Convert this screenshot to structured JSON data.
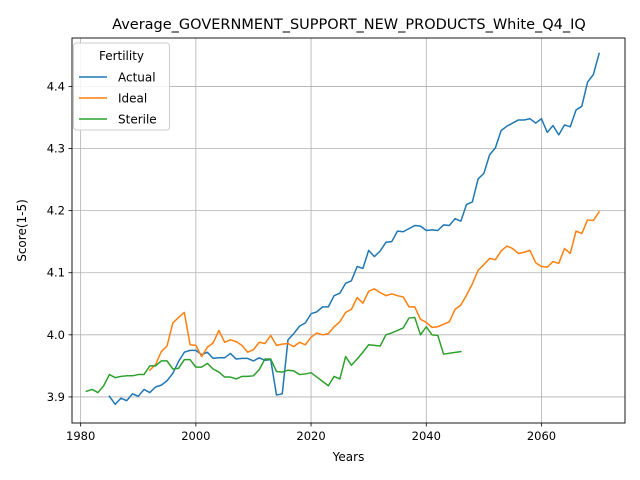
{
  "chart_data": {
    "type": "line",
    "title": "Average_GOVERNMENT_SUPPORT_NEW_PRODUCTS_White_Q4_IQ",
    "xlabel": "Years",
    "ylabel": "Score(1-5)",
    "xlim": [
      1978.5,
      2074.5
    ],
    "ylim": [
      3.858,
      4.478
    ],
    "xticks": [
      1980,
      2000,
      2020,
      2040,
      2060
    ],
    "yticks": [
      3.9,
      4.0,
      4.1,
      4.2,
      4.3,
      4.4
    ],
    "xtick_labels": [
      "1980",
      "2000",
      "2020",
      "2040",
      "2060"
    ],
    "ytick_labels": [
      "3.9",
      "4.0",
      "4.1",
      "4.2",
      "4.3",
      "4.4"
    ],
    "grid": true,
    "legend": {
      "title": "Fertility",
      "position": "top-left"
    },
    "series": [
      {
        "name": "Actual",
        "color": "#1f77b4",
        "points": [
          [
            1985,
            3.901
          ],
          [
            1986,
            3.888
          ],
          [
            1987,
            3.898
          ],
          [
            1988,
            3.894
          ],
          [
            1989,
            3.905
          ],
          [
            1990,
            3.901
          ],
          [
            1991,
            3.912
          ],
          [
            1992,
            3.907
          ],
          [
            1993,
            3.916
          ],
          [
            1994,
            3.919
          ],
          [
            1995,
            3.926
          ],
          [
            1996,
            3.938
          ],
          [
            1997,
            3.957
          ],
          [
            1998,
            3.972
          ],
          [
            1999,
            3.975
          ],
          [
            2000,
            3.975
          ],
          [
            2001,
            3.968
          ],
          [
            2002,
            3.972
          ],
          [
            2003,
            3.962
          ],
          [
            2004,
            3.963
          ],
          [
            2005,
            3.963
          ],
          [
            2006,
            3.97
          ],
          [
            2007,
            3.961
          ],
          [
            2008,
            3.962
          ],
          [
            2009,
            3.962
          ],
          [
            2010,
            3.958
          ],
          [
            2011,
            3.963
          ],
          [
            2012,
            3.959
          ],
          [
            2013,
            3.96
          ],
          [
            2014,
            3.903
          ],
          [
            2015,
            3.905
          ],
          [
            2016,
            3.992
          ],
          [
            2017,
            4.002
          ],
          [
            2018,
            4.014
          ],
          [
            2019,
            4.019
          ],
          [
            2020,
            4.034
          ],
          [
            2021,
            4.037
          ],
          [
            2022,
            4.045
          ],
          [
            2023,
            4.045
          ],
          [
            2024,
            4.063
          ],
          [
            2025,
            4.067
          ],
          [
            2026,
            4.083
          ],
          [
            2027,
            4.087
          ],
          [
            2028,
            4.11
          ],
          [
            2029,
            4.107
          ],
          [
            2030,
            4.136
          ],
          [
            2031,
            4.126
          ],
          [
            2032,
            4.135
          ],
          [
            2033,
            4.149
          ],
          [
            2034,
            4.15
          ],
          [
            2035,
            4.167
          ],
          [
            2036,
            4.166
          ],
          [
            2037,
            4.171
          ],
          [
            2038,
            4.176
          ],
          [
            2039,
            4.175
          ],
          [
            2040,
            4.168
          ],
          [
            2041,
            4.169
          ],
          [
            2042,
            4.168
          ],
          [
            2043,
            4.177
          ],
          [
            2044,
            4.176
          ],
          [
            2045,
            4.187
          ],
          [
            2046,
            4.183
          ],
          [
            2047,
            4.21
          ],
          [
            2048,
            4.214
          ],
          [
            2049,
            4.251
          ],
          [
            2050,
            4.26
          ],
          [
            2051,
            4.29
          ],
          [
            2052,
            4.301
          ],
          [
            2053,
            4.329
          ],
          [
            2054,
            4.336
          ],
          [
            2055,
            4.341
          ],
          [
            2056,
            4.346
          ],
          [
            2057,
            4.346
          ],
          [
            2058,
            4.348
          ],
          [
            2059,
            4.341
          ],
          [
            2060,
            4.348
          ],
          [
            2061,
            4.326
          ],
          [
            2062,
            4.337
          ],
          [
            2063,
            4.322
          ],
          [
            2064,
            4.338
          ],
          [
            2065,
            4.335
          ],
          [
            2066,
            4.362
          ],
          [
            2067,
            4.368
          ],
          [
            2068,
            4.407
          ],
          [
            2069,
            4.419
          ],
          [
            2070,
            4.453
          ]
        ]
      },
      {
        "name": "Ideal",
        "color": "#ff7f0e",
        "points": [
          [
            1992,
            3.943
          ],
          [
            1993,
            3.952
          ],
          [
            1994,
            3.973
          ],
          [
            1995,
            3.982
          ],
          [
            1996,
            4.019
          ],
          [
            1997,
            4.028
          ],
          [
            1998,
            4.036
          ],
          [
            1999,
            3.984
          ],
          [
            2000,
            3.983
          ],
          [
            2001,
            3.965
          ],
          [
            2002,
            3.98
          ],
          [
            2003,
            3.987
          ],
          [
            2004,
            4.007
          ],
          [
            2005,
            3.988
          ],
          [
            2006,
            3.992
          ],
          [
            2007,
            3.989
          ],
          [
            2008,
            3.983
          ],
          [
            2009,
            3.972
          ],
          [
            2010,
            3.976
          ],
          [
            2011,
            3.988
          ],
          [
            2012,
            3.986
          ],
          [
            2013,
            3.999
          ],
          [
            2014,
            3.983
          ],
          [
            2015,
            3.985
          ],
          [
            2016,
            3.986
          ],
          [
            2017,
            3.981
          ],
          [
            2018,
            3.988
          ],
          [
            2019,
            3.984
          ],
          [
            2020,
            3.996
          ],
          [
            2021,
            4.003
          ],
          [
            2022,
            4.0
          ],
          [
            2023,
            4.002
          ],
          [
            2024,
            4.013
          ],
          [
            2025,
            4.021
          ],
          [
            2026,
            4.036
          ],
          [
            2027,
            4.041
          ],
          [
            2028,
            4.06
          ],
          [
            2029,
            4.051
          ],
          [
            2030,
            4.07
          ],
          [
            2031,
            4.074
          ],
          [
            2032,
            4.068
          ],
          [
            2033,
            4.063
          ],
          [
            2034,
            4.066
          ],
          [
            2035,
            4.063
          ],
          [
            2036,
            4.061
          ],
          [
            2037,
            4.045
          ],
          [
            2038,
            4.045
          ],
          [
            2039,
            4.025
          ],
          [
            2040,
            4.02
          ],
          [
            2041,
            4.012
          ],
          [
            2042,
            4.013
          ],
          [
            2043,
            4.017
          ],
          [
            2044,
            4.021
          ],
          [
            2045,
            4.041
          ],
          [
            2046,
            4.048
          ],
          [
            2047,
            4.064
          ],
          [
            2048,
            4.082
          ],
          [
            2049,
            4.104
          ],
          [
            2050,
            4.113
          ],
          [
            2051,
            4.123
          ],
          [
            2052,
            4.121
          ],
          [
            2053,
            4.135
          ],
          [
            2054,
            4.143
          ],
          [
            2055,
            4.139
          ],
          [
            2056,
            4.131
          ],
          [
            2057,
            4.133
          ],
          [
            2058,
            4.136
          ],
          [
            2059,
            4.116
          ],
          [
            2060,
            4.11
          ],
          [
            2061,
            4.109
          ],
          [
            2062,
            4.118
          ],
          [
            2063,
            4.115
          ],
          [
            2064,
            4.139
          ],
          [
            2065,
            4.131
          ],
          [
            2066,
            4.167
          ],
          [
            2067,
            4.163
          ],
          [
            2068,
            4.185
          ],
          [
            2069,
            4.184
          ],
          [
            2070,
            4.198
          ]
        ]
      },
      {
        "name": "Sterile",
        "color": "#2ca02c",
        "points": [
          [
            1981,
            3.909
          ],
          [
            1982,
            3.912
          ],
          [
            1983,
            3.907
          ],
          [
            1984,
            3.918
          ],
          [
            1985,
            3.936
          ],
          [
            1986,
            3.931
          ],
          [
            1987,
            3.933
          ],
          [
            1988,
            3.934
          ],
          [
            1989,
            3.934
          ],
          [
            1990,
            3.936
          ],
          [
            1991,
            3.936
          ],
          [
            1992,
            3.95
          ],
          [
            1993,
            3.95
          ],
          [
            1994,
            3.958
          ],
          [
            1995,
            3.958
          ],
          [
            1996,
            3.945
          ],
          [
            1997,
            3.946
          ],
          [
            1998,
            3.96
          ],
          [
            1999,
            3.96
          ],
          [
            2000,
            3.948
          ],
          [
            2001,
            3.948
          ],
          [
            2002,
            3.954
          ],
          [
            2003,
            3.945
          ],
          [
            2004,
            3.94
          ],
          [
            2005,
            3.932
          ],
          [
            2006,
            3.932
          ],
          [
            2007,
            3.929
          ],
          [
            2008,
            3.933
          ],
          [
            2009,
            3.933
          ],
          [
            2010,
            3.934
          ],
          [
            2011,
            3.944
          ],
          [
            2012,
            3.961
          ],
          [
            2013,
            3.961
          ],
          [
            2014,
            3.941
          ],
          [
            2015,
            3.94
          ],
          [
            2016,
            3.943
          ],
          [
            2017,
            3.942
          ],
          [
            2018,
            3.936
          ],
          [
            2019,
            3.937
          ],
          [
            2020,
            3.939
          ],
          [
            2021,
            3.932
          ],
          [
            2022,
            3.925
          ],
          [
            2023,
            3.918
          ],
          [
            2024,
            3.933
          ],
          [
            2025,
            3.929
          ],
          [
            2026,
            3.965
          ],
          [
            2027,
            3.951
          ],
          [
            2028,
            3.961
          ],
          [
            2029,
            3.972
          ],
          [
            2030,
            3.984
          ],
          [
            2031,
            3.983
          ],
          [
            2032,
            3.982
          ],
          [
            2033,
            4.0
          ],
          [
            2034,
            4.003
          ],
          [
            2035,
            4.007
          ],
          [
            2036,
            4.011
          ],
          [
            2037,
            4.027
          ],
          [
            2038,
            4.028
          ],
          [
            2039,
            4.0
          ],
          [
            2040,
            4.013
          ],
          [
            2041,
            4.0
          ],
          [
            2042,
            3.999
          ],
          [
            2043,
            3.969
          ],
          [
            2046,
            3.973
          ]
        ]
      }
    ]
  }
}
